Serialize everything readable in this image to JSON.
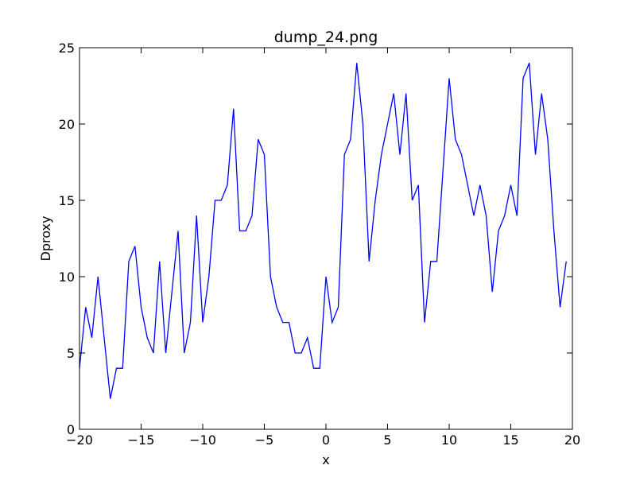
{
  "chart_data": {
    "type": "line",
    "title": "dump_24.png",
    "xlabel": "x",
    "ylabel": "Dproxy",
    "xlim": [
      -20,
      20
    ],
    "ylim": [
      0,
      25
    ],
    "xticks": [
      -20,
      -15,
      -10,
      -5,
      0,
      5,
      10,
      15,
      20
    ],
    "yticks": [
      0,
      5,
      10,
      15,
      20,
      25
    ],
    "xtick_labels": [
      "−20",
      "−15",
      "−10",
      "−5",
      "0",
      "5",
      "10",
      "15",
      "20"
    ],
    "ytick_labels": [
      "0",
      "5",
      "10",
      "15",
      "20",
      "25"
    ],
    "grid": false,
    "line_color": "#0000ff",
    "series": [
      {
        "x": [
          -20,
          -19.5,
          -19,
          -18.5,
          -18,
          -17.5,
          -17,
          -16.5,
          -16,
          -15.5,
          -15,
          -14.5,
          -14,
          -13.5,
          -13,
          -12.5,
          -12,
          -11.5,
          -11,
          -10.5,
          -10,
          -9.5,
          -9,
          -8.5,
          -8,
          -7.5,
          -7,
          -6.5,
          -6,
          -5.5,
          -5,
          -4.5,
          -4,
          -3.5,
          -3,
          -2.5,
          -2,
          -1.5,
          -1,
          -0.5,
          0,
          0.5,
          1,
          1.5,
          2,
          2.5,
          3,
          3.5,
          4,
          4.5,
          5,
          5.5,
          6,
          6.5,
          7,
          7.5,
          8,
          8.5,
          9,
          9.5,
          10,
          10.5,
          11,
          11.5,
          12,
          12.5,
          13,
          13.5,
          14,
          14.5,
          15,
          15.5,
          16,
          16.5,
          17,
          17.5,
          18,
          18.5,
          19,
          19.5
        ],
        "y": [
          4,
          8,
          6,
          10,
          6,
          2,
          4,
          4,
          11,
          12,
          8,
          6,
          5,
          11,
          5,
          9,
          13,
          5,
          7,
          14,
          7,
          10,
          15,
          15,
          16,
          21,
          13,
          13,
          14,
          19,
          18,
          10,
          8,
          7,
          7,
          5,
          5,
          6,
          4,
          4,
          10,
          7,
          8,
          18,
          19,
          24,
          20,
          11,
          15,
          18,
          20,
          22,
          18,
          22,
          15,
          16,
          7,
          11,
          11,
          17,
          23,
          19,
          18,
          16,
          14,
          16,
          14,
          9,
          13,
          14,
          16,
          14,
          23,
          24,
          18,
          22,
          19,
          13,
          8,
          11
        ]
      }
    ]
  }
}
